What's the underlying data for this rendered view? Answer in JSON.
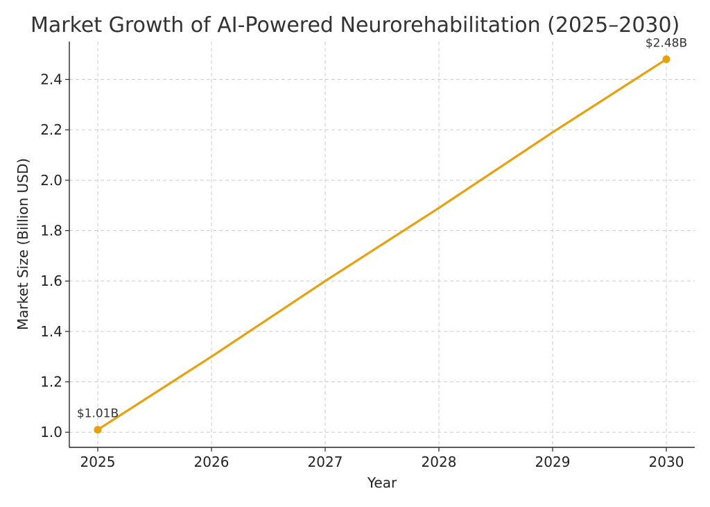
{
  "chart_data": {
    "type": "line",
    "title": "Market Growth of AI-Powered Neurorehabilitation (2025–2030)",
    "xlabel": "Year",
    "ylabel": "Market Size (Billion USD)",
    "x": [
      2025,
      2026,
      2027,
      2028,
      2029,
      2030
    ],
    "series": [
      {
        "values": [
          1.01,
          1.3,
          1.6,
          1.89,
          2.19,
          2.48
        ],
        "color": "#e6a10c"
      }
    ],
    "xticks": [
      "2025",
      "2026",
      "2027",
      "2028",
      "2029",
      "2030"
    ],
    "yticks": [
      "1.0",
      "1.2",
      "1.4",
      "1.6",
      "1.8",
      "2.0",
      "2.2",
      "2.4"
    ],
    "ylim": [
      0.94,
      2.55
    ],
    "xlim": [
      2024.75,
      2030.25
    ],
    "grid": true,
    "annotations": [
      {
        "x": 2025,
        "y": 1.01,
        "text": "$1.01B"
      },
      {
        "x": 2030,
        "y": 2.48,
        "text": "$2.48B"
      }
    ],
    "marked_points": [
      {
        "x": 2025,
        "y": 1.01
      },
      {
        "x": 2030,
        "y": 2.48
      }
    ]
  }
}
